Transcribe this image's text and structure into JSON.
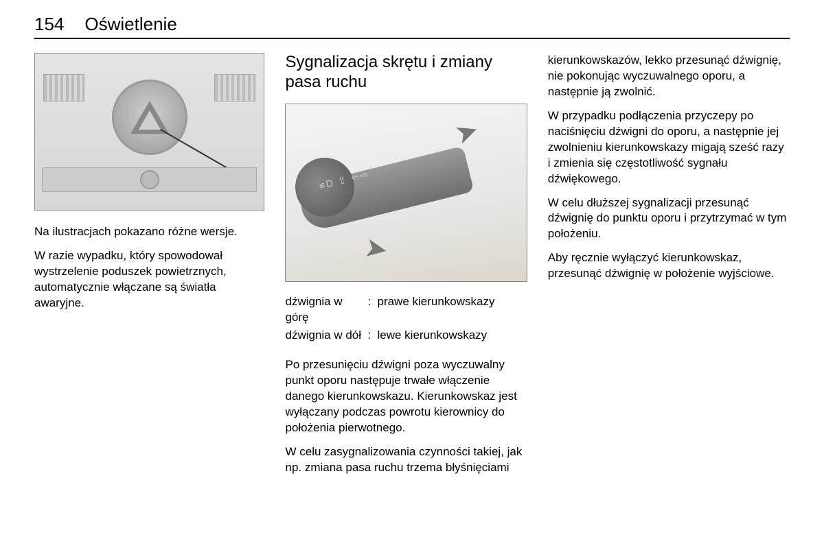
{
  "header": {
    "page_number": "154",
    "chapter": "Oświetlenie"
  },
  "col_left": {
    "p1": "Na ilustracjach pokazano różne wersje.",
    "p2": "W razie wypadku, który spowodował wystrzelenie poduszek powietrznych, automatycznie włączane są światła awaryjne."
  },
  "col_mid": {
    "heading": "Sygnalizacja skrętu i zmiany pasa ruchu",
    "def": [
      {
        "term": "dźwignia w górę",
        "value": "prawe kierunkowskazy"
      },
      {
        "term": "dźwignia w dół",
        "value": "lewe kierunkowskazy"
      }
    ],
    "p1": "Po przesunięciu dźwigni poza wyczuwalny punkt oporu następuje trwałe włączenie danego kierunkowskazu. Kierunkowskaz jest wyłączany podczas powrotu kierownicy do położenia pierwotnego.",
    "p2": "W celu zasygnalizowania czynności takiej, jak np. zmiana pasa ruchu trzema błyśnięciami"
  },
  "col_right": {
    "p1": "kierunkowskazów, lekko przesunąć dźwignię, nie pokonując wyczuwalnego oporu, a następnie ją zwolnić.",
    "p2": "W przypadku podłączenia przyczepy po naciśnięciu dźwigni do oporu, a następnie jej zwolnieniu kierunkowskazy migają sześć razy i zmienia się częstotliwość sygnału dźwiękowego.",
    "p3": "W celu dłuższej sygnalizacji przesunąć dźwignię do punktu oporu i przytrzymać w tym położeniu.",
    "p4": "Aby ręcznie wyłączyć kierunkowskaz, przesunąć dźwignię w położenie wyjściowe."
  },
  "figures": {
    "fig1_alt": "hazard-warning-button-dashboard",
    "fig2_alt": "turn-signal-stalk"
  }
}
